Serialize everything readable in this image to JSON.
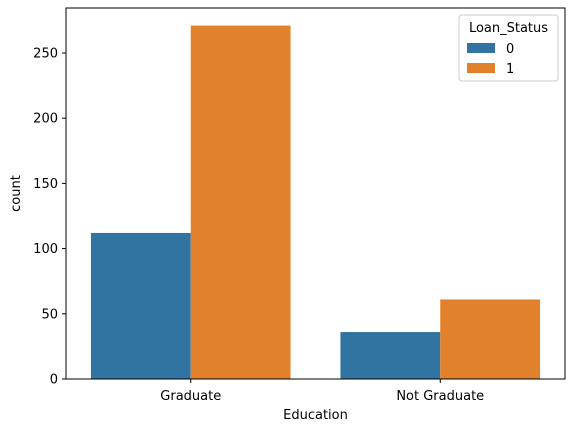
{
  "chart_data": {
    "type": "bar",
    "categories": [
      "Graduate",
      "Not Graduate"
    ],
    "series": [
      {
        "name": "0",
        "values": [
          112,
          36
        ],
        "color": "#3274a1"
      },
      {
        "name": "1",
        "values": [
          271,
          61
        ],
        "color": "#e1812c"
      }
    ],
    "xlabel": "Education",
    "ylabel": "count",
    "ylim": [
      0,
      284.5
    ],
    "yticks": [
      0,
      50,
      100,
      150,
      200,
      250
    ],
    "grid": false,
    "legend": {
      "title": "Loan_Status",
      "placement": "top-right"
    }
  }
}
